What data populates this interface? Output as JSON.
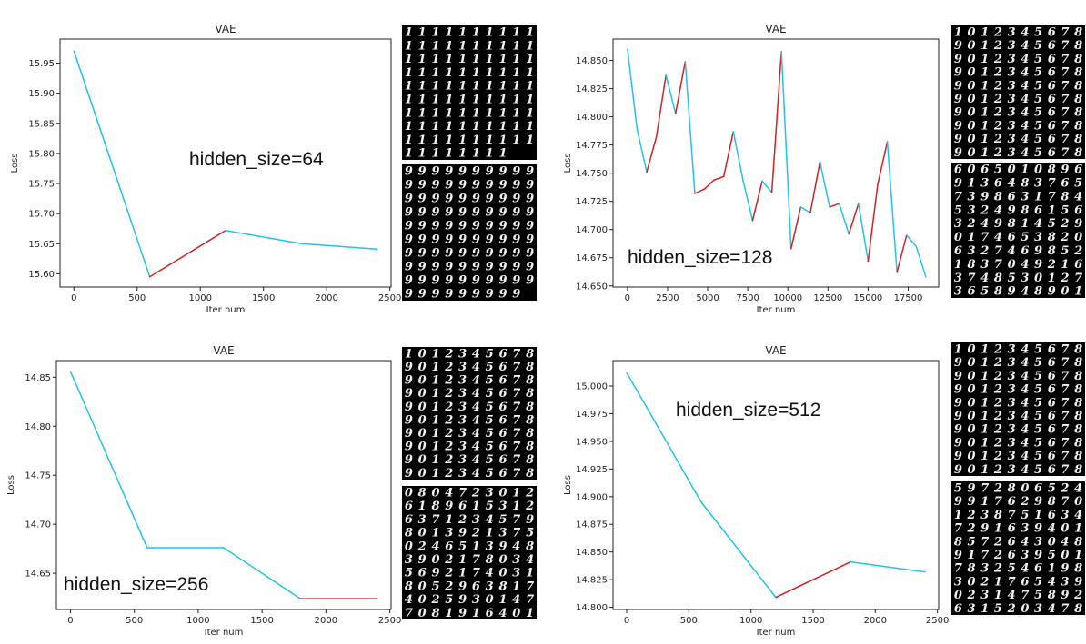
{
  "colors": {
    "descending": "#1fc3f0",
    "ascending": "#d42020",
    "grid_bg": "#000000",
    "digit": "#f2f2f2"
  },
  "chart_data": [
    {
      "type": "line",
      "title": "VAE",
      "xlabel": "Iter num",
      "ylabel": "Loss",
      "annotation": "hidden_size=64",
      "x": [
        0,
        600,
        1200,
        1800,
        2400
      ],
      "y": [
        15.97,
        15.595,
        15.672,
        15.65,
        15.641
      ],
      "xlim": [
        -110,
        2510
      ],
      "ylim": [
        15.578,
        15.99
      ],
      "xticks": [
        0,
        500,
        1000,
        1500,
        2000,
        2500
      ],
      "yticks": [
        15.6,
        15.65,
        15.7,
        15.75,
        15.8,
        15.85,
        15.9,
        15.95
      ],
      "ytick_decimals": 2,
      "grid": false,
      "color_rule": "cyan where loss decreases, red where loss increases",
      "samples": {
        "top": "11111111111111111111111111111111111111111111111111111111111111111111111111111111111111111111111111",
        "bottom": "999999999999999999999999999999999999999999999999999999999999999999999999999999999999999999999999999"
      }
    },
    {
      "type": "line",
      "title": "VAE",
      "xlabel": "Iter num",
      "ylabel": "Loss",
      "annotation": "hidden_size=128",
      "x": [
        0,
        600,
        1200,
        1800,
        2400,
        3000,
        3600,
        4200,
        4800,
        5400,
        6000,
        6600,
        7200,
        7800,
        8400,
        9000,
        9600,
        10200,
        10800,
        11400,
        12000,
        12600,
        13200,
        13800,
        14400,
        15000,
        15600,
        16200,
        16800,
        17400,
        18000,
        18600
      ],
      "y": [
        14.86,
        14.789,
        14.751,
        14.782,
        14.837,
        14.803,
        14.849,
        14.732,
        14.736,
        14.744,
        14.747,
        14.787,
        14.744,
        14.708,
        14.743,
        14.733,
        14.858,
        14.683,
        14.72,
        14.715,
        14.76,
        14.72,
        14.723,
        14.696,
        14.723,
        14.672,
        14.74,
        14.778,
        14.662,
        14.695,
        14.685,
        14.658
      ],
      "xlim": [
        -900,
        19400
      ],
      "ylim": [
        14.649,
        14.869
      ],
      "xticks": [
        0,
        2500,
        5000,
        7500,
        10000,
        12500,
        15000,
        17500
      ],
      "yticks": [
        14.65,
        14.675,
        14.7,
        14.725,
        14.75,
        14.775,
        14.8,
        14.825,
        14.85
      ],
      "ytick_decimals": 3,
      "grid": false,
      "color_rule": "cyan where loss decreases, red where loss increases",
      "samples": {
        "top": "1012345678901234567890123456789012345678901234567890123456789012345678901234567890123456789012345678",
        "bottom": "6065010896913648376573986317845324986156324981452901746538206327469852183704921637485301273658948901"
      }
    },
    {
      "type": "line",
      "title": "VAE",
      "xlabel": "Iter num",
      "ylabel": "Loss",
      "annotation": "hidden_size=256",
      "x": [
        0,
        600,
        1200,
        1800,
        2400
      ],
      "y": [
        14.856,
        14.676,
        14.676,
        14.624,
        14.624
      ],
      "xlim": [
        -110,
        2510
      ],
      "ylim": [
        14.613,
        14.867
      ],
      "xticks": [
        0,
        500,
        1000,
        1500,
        2000,
        2500
      ],
      "yticks": [
        14.65,
        14.7,
        14.75,
        14.8,
        14.85
      ],
      "ytick_decimals": 2,
      "grid": false,
      "color_rule": "cyan where loss decreases, red where loss is flat or increases at the end",
      "samples": {
        "top": "1012345678901234567890123456789012345678901234567890123456789012345678901234567890123456789012345678",
        "bottom": "0804723012618961531263712345798013921375024651394839021780345692174031805296381740259301477081916401"
      }
    },
    {
      "type": "line",
      "title": "VAE",
      "xlabel": "Iter num",
      "ylabel": "Loss",
      "annotation": "hidden_size=512",
      "x": [
        0,
        600,
        1200,
        1800,
        2400
      ],
      "y": [
        15.012,
        14.895,
        14.809,
        14.841,
        14.832
      ],
      "xlim": [
        -110,
        2510
      ],
      "ylim": [
        14.798,
        15.023
      ],
      "xticks": [
        0,
        500,
        1000,
        1500,
        2000,
        2500
      ],
      "yticks": [
        14.8,
        14.825,
        14.85,
        14.875,
        14.9,
        14.925,
        14.95,
        14.975,
        15.0
      ],
      "ytick_decimals": 3,
      "grid": false,
      "color_rule": "cyan where loss decreases, red where loss increases",
      "samples": {
        "top": "1012345678901234567890123456789012345678901234567890123456789012345678901234567890123456789012345678",
        "bottom": "5972806524991762987012387516347291639401857264304891726395017832546198302176543902314758926315203478"
      }
    }
  ]
}
